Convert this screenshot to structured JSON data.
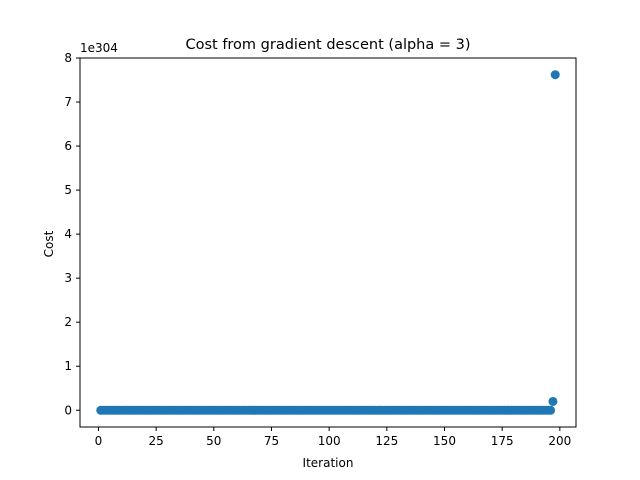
{
  "chart_data": {
    "type": "scatter",
    "title": "Cost from gradient descent (alpha = 3)",
    "xlabel": "Iteration",
    "ylabel": "Cost",
    "y_scale_label": "1e304",
    "xlim": [
      -8,
      207
    ],
    "ylim": [
      -0.38,
      8
    ],
    "xticks": [
      0,
      25,
      50,
      75,
      100,
      125,
      150,
      175,
      200
    ],
    "yticks": [
      0,
      1,
      2,
      3,
      4,
      5,
      6,
      7,
      8
    ],
    "grid": false,
    "legend": "none",
    "marker_color": "#1f77b4",
    "points": {
      "x_start": 1,
      "x_end": 198,
      "baseline_y": 0,
      "outliers": [
        {
          "x": 197,
          "y": 0.2
        },
        {
          "x": 198,
          "y": 7.62
        }
      ]
    }
  }
}
